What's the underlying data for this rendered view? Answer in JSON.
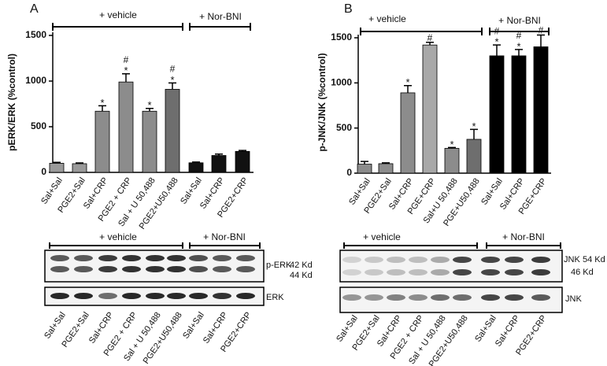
{
  "chart_data": [
    {
      "type": "bar",
      "panel_label": "A",
      "y_label": "pERK/ERK (%control)",
      "categories": [
        "Sal+Sal",
        "PGE2+Sal",
        "Sal+CRP",
        "PGE2 + CRP",
        "Sal + U 50,488",
        "PGE2+U50,488",
        "Sal+Sal",
        "Sal+CRP",
        "PGE2+CRP"
      ],
      "values": [
        100,
        95,
        670,
        990,
        670,
        910,
        105,
        185,
        230
      ],
      "errors": [
        10,
        8,
        60,
        90,
        30,
        70,
        8,
        15,
        10
      ],
      "colors": [
        "#9a9a9a",
        "#9a9a9a",
        "#8c8c8c",
        "#8c8c8c",
        "#8c8c8c",
        "#6e6e6e",
        "#111111",
        "#111111",
        "#111111"
      ],
      "star_labels": [
        null,
        null,
        "*",
        "*",
        "*",
        "*",
        null,
        null,
        null
      ],
      "hash_labels": [
        null,
        null,
        null,
        "#",
        null,
        "#",
        null,
        null,
        null
      ],
      "groups": [
        "+ vehicle",
        "+ Nor-BNI"
      ],
      "ylim": [
        0,
        1500
      ],
      "yticks": [
        0,
        500,
        1000,
        1500
      ]
    },
    {
      "type": "bar",
      "panel_label": "B",
      "y_label": "p-JNK/JNK (%control)",
      "categories": [
        "Sal+Sal",
        "PGE2+Sal",
        "Sal+CRP",
        "PGE+CRP",
        "Sal+U 50,488",
        "PGE+U50,488",
        "Sal+Sal",
        "Sal+CRP",
        "PGE+CRP"
      ],
      "values": [
        100,
        105,
        890,
        1420,
        275,
        375,
        1300,
        1300,
        1400
      ],
      "errors": [
        30,
        10,
        80,
        30,
        10,
        110,
        120,
        70,
        130
      ],
      "colors": [
        "#8c8c8c",
        "#8c8c8c",
        "#8c8c8c",
        "#a8a8a8",
        "#8c8c8c",
        "#6e6e6e",
        "#000000",
        "#000000",
        "#000000"
      ],
      "star_labels": [
        null,
        null,
        "*",
        null,
        "*",
        "*",
        "*",
        "*",
        null
      ],
      "hash_labels": [
        null,
        null,
        null,
        "#",
        null,
        null,
        "#",
        "#",
        "#"
      ],
      "groups": [
        "+ vehicle",
        "+ Nor-BNI"
      ],
      "ylim": [
        0,
        1500
      ],
      "yticks": [
        0,
        500,
        1000,
        1500
      ]
    }
  ],
  "blots": [
    {
      "groups": [
        "+ vehicle",
        "+ Nor-BNI"
      ],
      "band_labels": [
        "p-ERK",
        "42 Kd",
        "44 Kd",
        "ERK"
      ],
      "lanes": [
        "Sal+Sal",
        "PGE2+Sal",
        "Sal+CRP",
        "PGE2 + CRP",
        "Sal + U 50,488",
        "PGE2+U50,488",
        "Sal+Sal",
        "Sal+CRP",
        "PGE2+CRP"
      ]
    },
    {
      "groups": [
        "+ vehicle",
        "+ Nor-BNI"
      ],
      "band_labels": [
        "JNK",
        "54 Kd",
        "46 Kd",
        "JNK"
      ],
      "lanes": [
        "Sal+Sal",
        "PGE2+Sal",
        "Sal+CRP",
        "PGE2 + CRP",
        "Sal + U 50,488",
        "PGE2+U50,488",
        "Sal+Sal",
        "Sal+CRP",
        "PGE2+CRP"
      ]
    }
  ]
}
